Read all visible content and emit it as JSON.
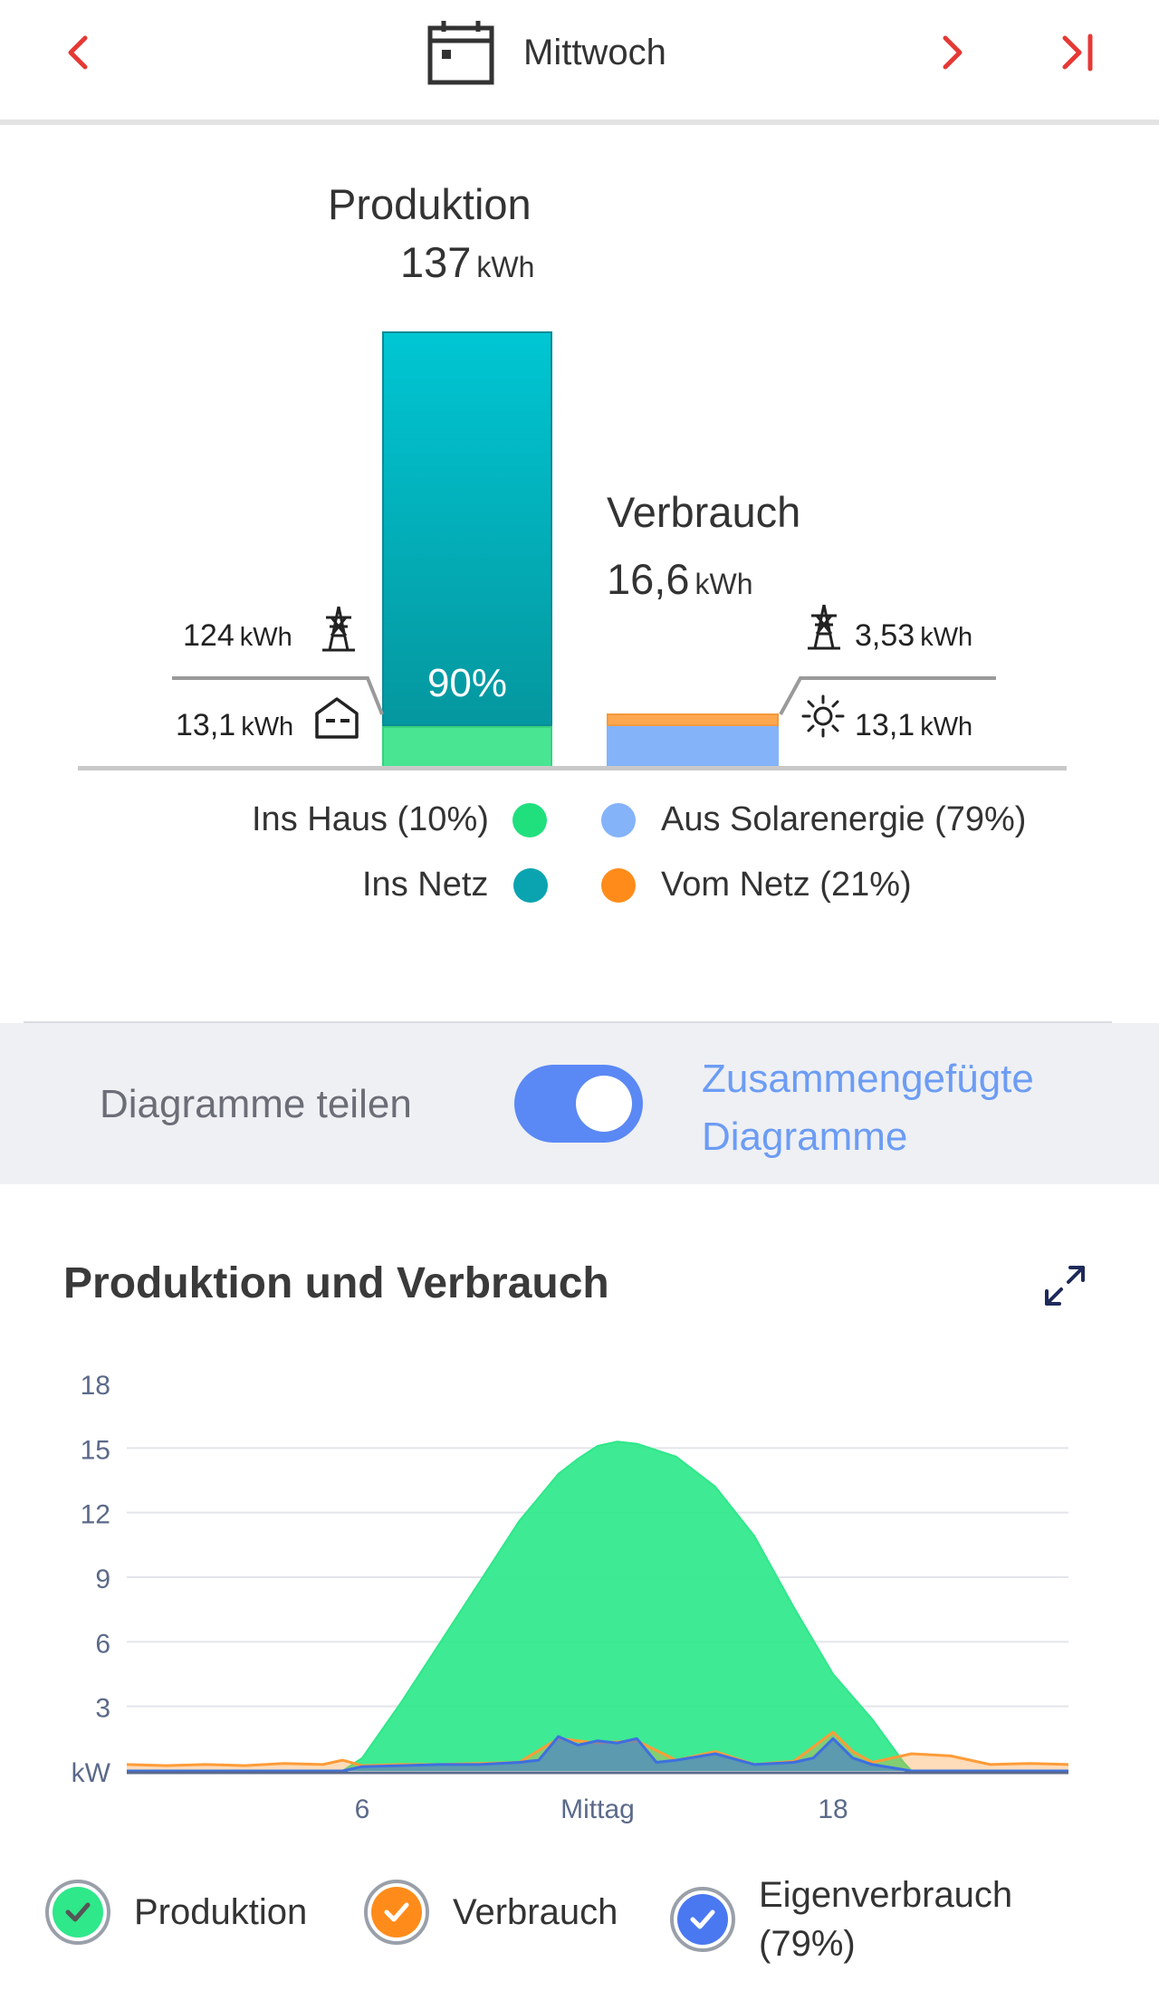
{
  "nav": {
    "day": "Mittwoch",
    "accent_color": "#e53935"
  },
  "summary": {
    "production": {
      "title": "Produktion",
      "value": "137",
      "unit": "kWh",
      "share_pct_label": "90%"
    },
    "consumption": {
      "title": "Verbrauch",
      "value": "16,6",
      "unit": "kWh"
    },
    "left": {
      "to_grid": {
        "value": "124",
        "unit": "kWh",
        "icon": "power-tower-icon"
      },
      "to_house": {
        "value": "13,1",
        "unit": "kWh",
        "icon": "house-icon"
      }
    },
    "right": {
      "from_grid": {
        "value": "3,53",
        "unit": "kWh",
        "icon": "power-tower-icon"
      },
      "from_solar": {
        "value": "13,1",
        "unit": "kWh",
        "icon": "sun-icon"
      }
    },
    "legend": [
      {
        "label": "Ins Haus (10%)",
        "color": "#1fe07d"
      },
      {
        "label": "Ins Netz",
        "color": "#0aa4b0"
      },
      {
        "label": "Aus Solarenergie (79%)",
        "color": "#84b3f9"
      },
      {
        "label": "Vom Netz (21%)",
        "color": "#ff8c1a"
      }
    ],
    "production_share": 0.9,
    "consumption_solar_share": 0.79
  },
  "toggle": {
    "left_label": "Diagramme teilen",
    "right_label_line1": "Zusammengefügte",
    "right_label_line2": "Diagramme",
    "state": "on",
    "color": "#5a88f5"
  },
  "chart": {
    "title": "Produktion und Verbrauch",
    "expand_icon": "expand-icon"
  },
  "chart_data": {
    "type": "area",
    "title": "Produktion und Verbrauch",
    "ylabel": "kW",
    "ylim": [
      0,
      18
    ],
    "yticks": [
      3,
      6,
      9,
      12,
      15,
      18
    ],
    "xlim": [
      0,
      24
    ],
    "xtick_positions": [
      6,
      12,
      18
    ],
    "xtick_labels": [
      "6",
      "Mittag",
      "18"
    ],
    "grid": true,
    "series": [
      {
        "name": "Produktion",
        "color": "#2ee88a",
        "x": [
          0,
          5.5,
          6,
          7,
          8,
          9,
          10,
          11,
          11.5,
          12,
          12.5,
          13,
          14,
          15,
          16,
          17,
          18,
          19,
          19.8,
          20,
          24
        ],
        "y": [
          0,
          0,
          0.6,
          3.2,
          6.0,
          8.8,
          11.6,
          13.8,
          14.5,
          15.1,
          15.3,
          15.2,
          14.6,
          13.2,
          10.9,
          7.6,
          4.5,
          2.4,
          0.4,
          0,
          0
        ]
      },
      {
        "name": "Verbrauch",
        "color": "#ff9c38",
        "x": [
          0,
          1,
          2,
          3,
          4,
          5,
          5.5,
          6,
          7,
          8,
          9,
          10,
          11,
          12,
          13,
          14,
          15,
          16,
          17,
          18,
          18.5,
          19,
          20,
          21,
          22,
          23,
          24
        ],
        "y": [
          0.3,
          0.25,
          0.3,
          0.25,
          0.35,
          0.3,
          0.5,
          0.25,
          0.3,
          0.3,
          0.35,
          0.4,
          1.5,
          1.3,
          1.4,
          0.5,
          0.9,
          0.3,
          0.45,
          1.8,
          0.9,
          0.4,
          0.8,
          0.7,
          0.3,
          0.35,
          0.3
        ]
      },
      {
        "name": "Eigenverbrauch (79%)",
        "color": "#3d6fe0",
        "x": [
          0,
          5.5,
          6,
          7,
          8,
          9,
          10,
          10.5,
          11,
          11.5,
          12,
          12.5,
          13,
          13.5,
          14,
          15,
          16,
          17,
          17.5,
          18,
          18.5,
          19,
          20,
          24
        ],
        "y": [
          0,
          0,
          0.2,
          0.25,
          0.3,
          0.3,
          0.4,
          0.5,
          1.6,
          1.2,
          1.4,
          1.3,
          1.5,
          0.4,
          0.5,
          0.8,
          0.3,
          0.4,
          0.6,
          1.5,
          0.6,
          0.3,
          0,
          0
        ]
      }
    ]
  },
  "bottom_legend": [
    {
      "label": "Produktion",
      "fill": "#2ee88a",
      "border": "#8c929c",
      "checked": true
    },
    {
      "label": "Verbrauch",
      "fill": "#ff8c1a",
      "border": "#8c929c",
      "checked": true
    },
    {
      "label_line1": "Eigenverbrauch",
      "label_line2": "(79%)",
      "fill": "#4a78f0",
      "border": "#8c929c",
      "checked": true
    }
  ]
}
